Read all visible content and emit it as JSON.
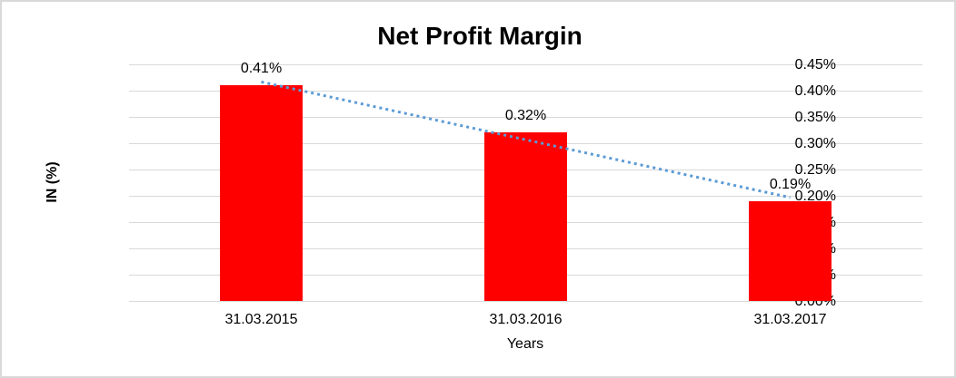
{
  "window": {
    "background_color": "#FFFFFF",
    "border_color": "#D9D9D9"
  },
  "chart_data": {
    "type": "bar",
    "title": "Net Profit Margin",
    "xlabel": "Years",
    "ylabel": "IN (%)",
    "categories": [
      "31.03.2015",
      "31.03.2016",
      "31.03.2017"
    ],
    "values": [
      0.41,
      0.32,
      0.19
    ],
    "data_labels": [
      "0.41%",
      "0.32%",
      "0.19%"
    ],
    "ylim": [
      0,
      0.45
    ],
    "ytick_step": 0.05,
    "ytick_labels": [
      "0.45%",
      "0.40%",
      "0.35%",
      "0.30%",
      "0.25%",
      "0.20%",
      "0.15%",
      "0.10%",
      "0.05%",
      "0.00%"
    ],
    "grid": true,
    "legend": "none",
    "bar_color": "#FF0000",
    "gridline_color": "#D9D9D9",
    "text_color": "#000000",
    "trendline": {
      "type": "linear",
      "style": "dotted",
      "color": "#5B9BD5"
    }
  }
}
